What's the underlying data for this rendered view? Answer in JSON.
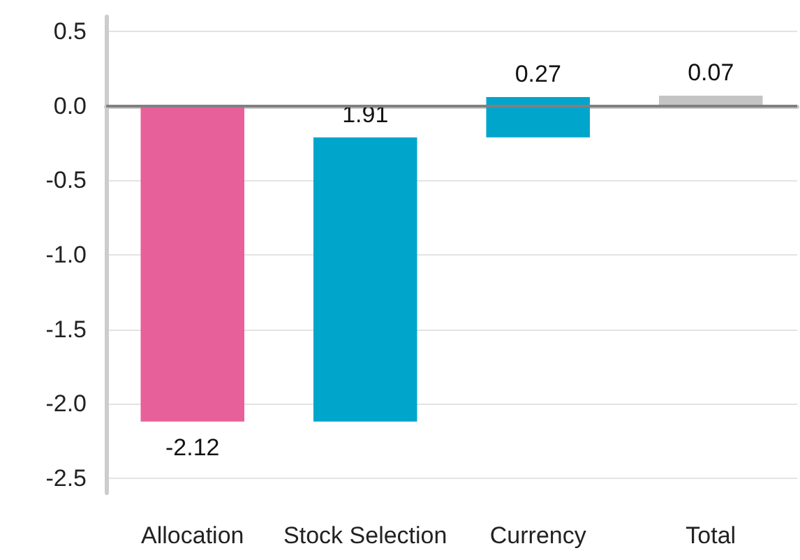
{
  "chart_data": {
    "type": "bar",
    "categories": [
      "Allocation",
      "Stock Selection",
      "Currency",
      "Total"
    ],
    "values": [
      -2.12,
      1.91,
      0.27,
      0.07
    ],
    "base": [
      0,
      -2.12,
      -0.21,
      0
    ],
    "colors": [
      "#e8609a",
      "#00a5cc",
      "#00a5cc",
      "#c4c4c4"
    ],
    "data_labels": true,
    "ylim": [
      -2.6,
      0.6
    ],
    "yticks": [
      {
        "value": -2.5,
        "label": "-2.5"
      },
      {
        "value": -2,
        "label": "-2.0"
      },
      {
        "value": -1.5,
        "label": "-1.5"
      },
      {
        "value": -1,
        "label": "-1.0"
      },
      {
        "value": -0.5,
        "label": "-0.5"
      },
      {
        "value": 0,
        "label": "0.0"
      },
      {
        "value": 0.5,
        "label": "0.5"
      }
    ],
    "grid": "y",
    "ref_lines": [
      {
        "axis": "y",
        "value": 0,
        "color": "#808080"
      }
    ]
  }
}
